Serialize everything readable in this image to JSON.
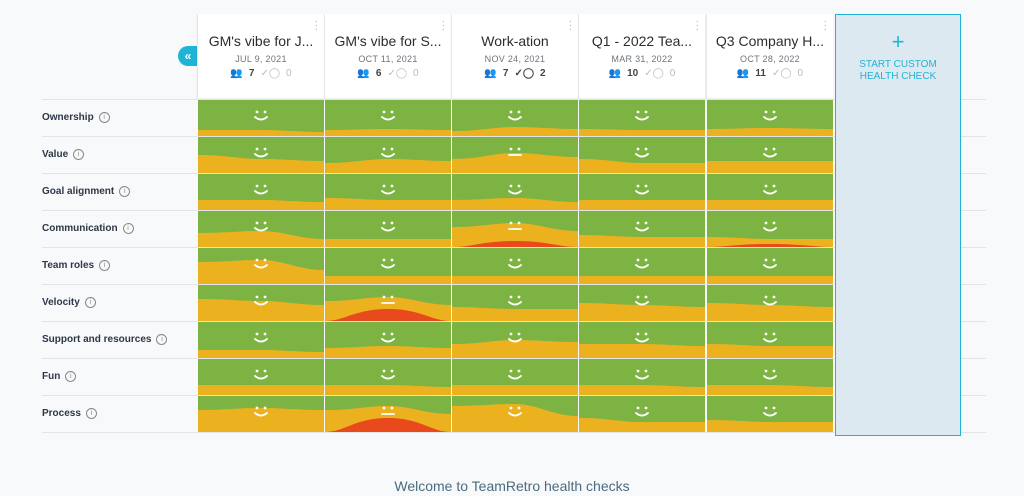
{
  "sidebar_toggle": {
    "glyph": "«"
  },
  "health_checks": [
    {
      "title": "GM's vibe for J...",
      "date": "JUL 9, 2021",
      "participants": "7",
      "actions": "0",
      "actions_done": false
    },
    {
      "title": "GM's vibe for S...",
      "date": "OCT 11, 2021",
      "participants": "6",
      "actions": "0",
      "actions_done": false
    },
    {
      "title": "Work-ation",
      "date": "NOV 24, 2021",
      "participants": "7",
      "actions": "2",
      "actions_done": true
    },
    {
      "title": "Q1 - 2022 Tea...",
      "date": "MAR 31, 2022",
      "participants": "10",
      "actions": "0",
      "actions_done": false
    },
    {
      "title": "Q3 Company H...",
      "date": "OCT 28, 2022",
      "participants": "11",
      "actions": "0",
      "actions_done": false
    }
  ],
  "dimensions": [
    {
      "label": "Ownership",
      "moods": [
        "happy",
        "happy",
        "happy",
        "happy",
        "happy"
      ]
    },
    {
      "label": "Value",
      "moods": [
        "happy",
        "happy",
        "neutral",
        "happy",
        "happy"
      ]
    },
    {
      "label": "Goal alignment",
      "moods": [
        "happy",
        "happy",
        "happy",
        "happy",
        "happy"
      ]
    },
    {
      "label": "Communication",
      "moods": [
        "happy",
        "happy",
        "neutral",
        "happy",
        "happy"
      ]
    },
    {
      "label": "Team roles",
      "moods": [
        "happy",
        "happy",
        "happy",
        "happy",
        "happy"
      ]
    },
    {
      "label": "Velocity",
      "moods": [
        "happy",
        "neutral",
        "happy",
        "happy",
        "happy"
      ]
    },
    {
      "label": "Support and resources",
      "moods": [
        "happy",
        "happy",
        "happy",
        "happy",
        "happy"
      ]
    },
    {
      "label": "Fun",
      "moods": [
        "happy",
        "happy",
        "happy",
        "happy",
        "happy"
      ]
    },
    {
      "label": "Process",
      "moods": [
        "happy",
        "neutral",
        "happy",
        "happy",
        "happy"
      ]
    }
  ],
  "custom": {
    "plus": "+",
    "line1": "START CUSTOM",
    "line2": "HEALTH CHECK"
  },
  "welcome": "Welcome to TeamRetro health checks",
  "colors": {
    "green": "#7cb342",
    "yellow": "#ecb11f",
    "red": "#e8491d",
    "accent": "#1fb4d6"
  }
}
